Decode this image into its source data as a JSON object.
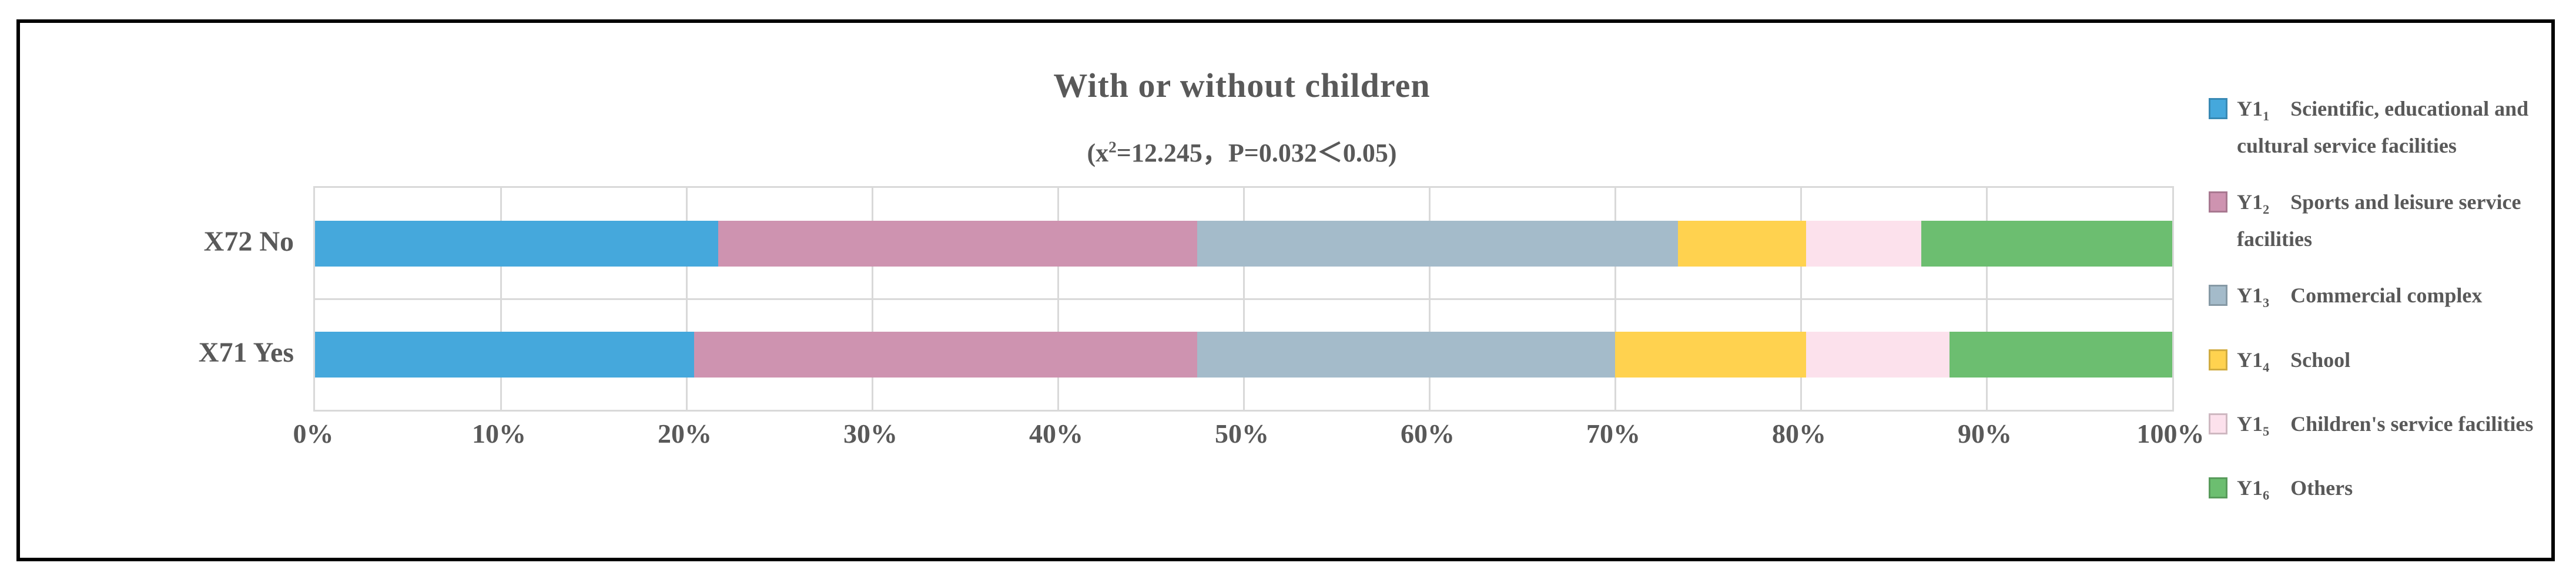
{
  "figure": {
    "title": "With or without children",
    "subtitle_pre": "(x",
    "subtitle_sup": "2",
    "subtitle_post": "=12.245，P=0.032＜0.05)"
  },
  "colors": {
    "text": "#595959",
    "gridline": "#d9d9d9",
    "frame": "#000000",
    "series": [
      "#45A8DC",
      "#CE93B0",
      "#A4BBCA",
      "#FFD24F",
      "#FCE1EC",
      "#6CBE70"
    ]
  },
  "chart_data": {
    "type": "bar",
    "orientation": "horizontal",
    "stacked": true,
    "stacked_total": 100,
    "title": "With or without children",
    "subtitle": "(x²=12.245，P=0.032＜0.05)",
    "categories": [
      "X72 No",
      "X71 Yes"
    ],
    "series": [
      {
        "name": "Y1₁ Scientific, educational and cultural service facilities",
        "color": "#45A8DC",
        "values": [
          21.7,
          20.4
        ]
      },
      {
        "name": "Y1₂ Sports and leisure service facilities",
        "color": "#CE93B0",
        "values": [
          25.8,
          27.1
        ]
      },
      {
        "name": "Y1₃ Commercial complex",
        "color": "#A4BBCA",
        "values": [
          25.9,
          22.5
        ]
      },
      {
        "name": "Y1₄ School",
        "color": "#FFD24F",
        "values": [
          6.9,
          10.3
        ]
      },
      {
        "name": "Y1₅ Children's service facilities",
        "color": "#FCE1EC",
        "values": [
          6.2,
          7.7
        ]
      },
      {
        "name": "Y1₆ Others",
        "color": "#6CBE70",
        "values": [
          13.5,
          12.0
        ]
      }
    ],
    "x_ticks": [
      "0%",
      "10%",
      "20%",
      "30%",
      "40%",
      "50%",
      "60%",
      "70%",
      "80%",
      "90%",
      "100%"
    ],
    "xlim": [
      0,
      100
    ],
    "grid": "vertical",
    "legend_position": "right"
  },
  "legend": {
    "items": [
      {
        "code": "Y1",
        "sub": "1",
        "label": "Scientific, educational and cultural service facilities",
        "color": "#45A8DC"
      },
      {
        "code": "Y1",
        "sub": "2",
        "label": "Sports and leisure service facilities",
        "color": "#CE93B0"
      },
      {
        "code": "Y1",
        "sub": "3",
        "label": "Commercial complex",
        "color": "#A4BBCA"
      },
      {
        "code": "Y1",
        "sub": "4",
        "label": "School",
        "color": "#FFD24F"
      },
      {
        "code": "Y1",
        "sub": "5",
        "label": "Children's service facilities",
        "color": "#FCE1EC"
      },
      {
        "code": "Y1",
        "sub": "6",
        "label": "Others",
        "color": "#6CBE70"
      }
    ]
  }
}
